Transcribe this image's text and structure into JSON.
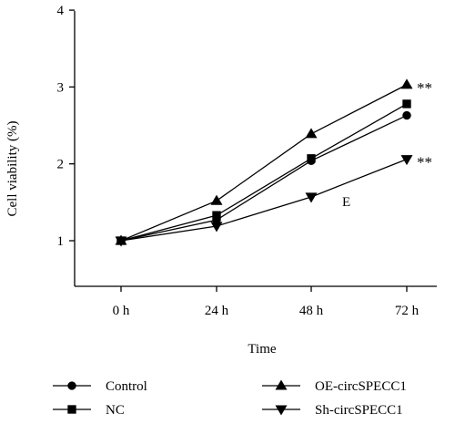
{
  "chart_data": {
    "type": "line",
    "title": "",
    "xlabel": "Time",
    "ylabel": "Cell viability (%)",
    "categories": [
      "0 h",
      "24 h",
      "48 h",
      "72 h"
    ],
    "yticks": [
      "1",
      "2",
      "3",
      "4"
    ],
    "ylim": [
      0.9,
      4
    ],
    "grid": false,
    "legend_position": "bottom",
    "series": [
      {
        "name": "Control",
        "marker": "circle",
        "values": [
          1.0,
          1.27,
          2.04,
          2.63
        ]
      },
      {
        "name": "NC",
        "marker": "square",
        "values": [
          1.0,
          1.33,
          2.07,
          2.78
        ]
      },
      {
        "name": "OE-circSPECC1",
        "marker": "triangle-up",
        "values": [
          1.0,
          1.52,
          2.39,
          3.03
        ]
      },
      {
        "name": "Sh-circSPECC1",
        "marker": "triangle-down",
        "values": [
          1.0,
          1.19,
          1.57,
          2.06
        ]
      }
    ],
    "annotations": [
      {
        "text": "**",
        "series": "OE-circSPECC1",
        "category": "72 h"
      },
      {
        "text": "**",
        "series": "Sh-circSPECC1",
        "category": "72 h"
      },
      {
        "text": "E",
        "category": "48 h",
        "y": 1.5
      }
    ]
  }
}
